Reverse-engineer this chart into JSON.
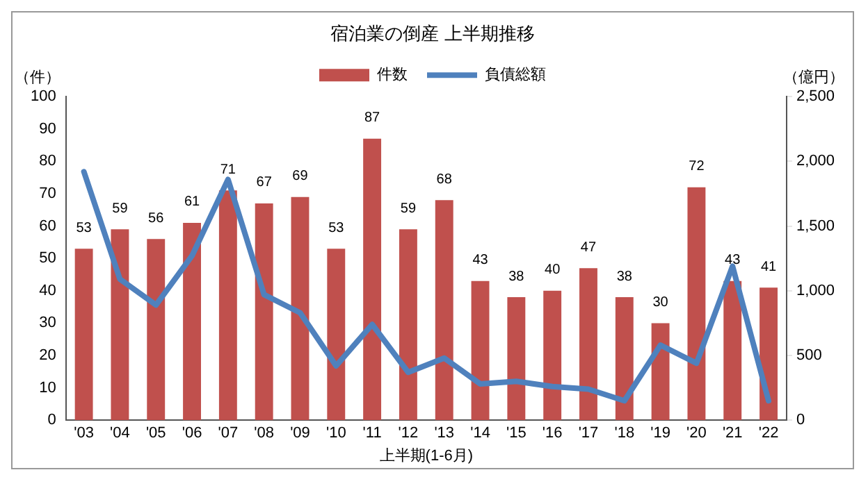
{
  "chart_data": {
    "type": "bar",
    "title": "宿泊業の倒産 上半期推移",
    "xlabel": "上半期(1-6月)",
    "ylabel": "（件）",
    "y2label": "（億円）",
    "categories": [
      "'03",
      "'04",
      "'05",
      "'06",
      "'07",
      "'08",
      "'09",
      "'10",
      "'11",
      "'12",
      "'13",
      "'14",
      "'15",
      "'16",
      "'17",
      "'18",
      "'19",
      "'20",
      "'21",
      "'22"
    ],
    "series": [
      {
        "name": "件数",
        "color": "#c0504d",
        "values": [
          53,
          59,
          56,
          61,
          71,
          67,
          69,
          53,
          87,
          59,
          68,
          43,
          38,
          40,
          47,
          38,
          30,
          72,
          43,
          41
        ],
        "value_labels": [
          "53",
          "59",
          "56",
          "61",
          "71",
          "67",
          "69",
          "53",
          "87",
          "59",
          "68",
          "43",
          "38",
          "40",
          "47",
          "38",
          "30",
          "72",
          "43",
          "41"
        ]
      },
      {
        "name": "負債総額",
        "type": "line",
        "axis": "y2",
        "color": "#4f81bd",
        "values": [
          1920,
          1090,
          890,
          1270,
          1860,
          970,
          830,
          420,
          740,
          370,
          480,
          280,
          300,
          260,
          240,
          150,
          580,
          440,
          1190,
          150
        ]
      }
    ],
    "ylim": [
      0,
      100
    ],
    "yticks": [
      0,
      10,
      20,
      30,
      40,
      50,
      60,
      70,
      80,
      90,
      100
    ],
    "y2lim": [
      0,
      2500
    ],
    "y2ticks": [
      {
        "value": 0,
        "label": "0"
      },
      {
        "value": 500,
        "label": "500"
      },
      {
        "value": 1000,
        "label": "1,000"
      },
      {
        "value": 1500,
        "label": "1,500"
      },
      {
        "value": 2000,
        "label": "2,000"
      },
      {
        "value": 2500,
        "label": "2,500"
      }
    ],
    "grid": false,
    "legend": "top",
    "marker": "none",
    "line_style": "solid"
  }
}
